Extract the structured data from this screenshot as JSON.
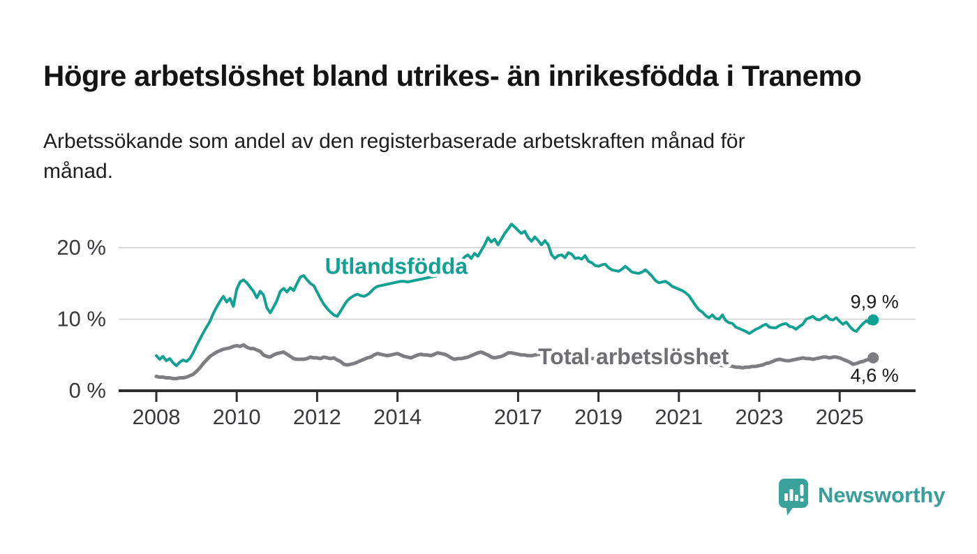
{
  "header": {
    "title": "Högre arbetslöshet bland utrikes- än inrikesfödda i Tranemo",
    "subtitle": "Arbetssökande som andel av den registerbaserade arbetskraften månad för månad."
  },
  "footer": {
    "brand": "Newsworthy"
  },
  "colors": {
    "foreign_line": "#11a192",
    "total_line": "#7d7d82",
    "total_label": "#6e6e73",
    "grid": "#d9d9d9",
    "axis": "#2e2e32",
    "tick_label": "#3a3a3e",
    "value_label": "#1a1a1a",
    "brand_teal": "#3aa19b"
  },
  "chart_data": {
    "type": "line",
    "title": "Högre arbetslöshet bland utrikes- än inrikesfödda i Tranemo",
    "subtitle": "Arbetssökande som andel av den registerbaserade arbetskraften månad för månad.",
    "xlabel": "",
    "ylabel": "",
    "ylim": [
      0,
      24
    ],
    "x_range_years": [
      2008,
      2025.92
    ],
    "grid": "horizontal",
    "legend_position": "inline-labels",
    "y_ticks": [
      {
        "label": "0 %",
        "value": 0
      },
      {
        "label": "10 %",
        "value": 10
      },
      {
        "label": "20 %",
        "value": 20
      }
    ],
    "x_ticks": [
      {
        "label": "2008",
        "year": 2008
      },
      {
        "label": "2010",
        "year": 2010
      },
      {
        "label": "2012",
        "year": 2012
      },
      {
        "label": "2014",
        "year": 2014
      },
      {
        "label": "2017",
        "year": 2017
      },
      {
        "label": "2019",
        "year": 2019
      },
      {
        "label": "2021",
        "year": 2021
      },
      {
        "label": "2023",
        "year": 2023
      },
      {
        "label": "2025",
        "year": 2025
      }
    ],
    "series": [
      {
        "id": "utlandsfodda",
        "name": "Utlandsfödda",
        "color": "#11a192",
        "line_width": 4,
        "end_value": 9.9,
        "end_label": "9,9 %",
        "end_label_side": "above",
        "name_label_anchor": {
          "year": 2013.97,
          "value": 17.4
        },
        "start_year": 2008,
        "points_per_year": 12,
        "values": [
          4.9,
          4.4,
          4.8,
          4.2,
          4.5,
          3.9,
          3.5,
          4.0,
          4.3,
          4.1,
          4.5,
          5.3,
          6.3,
          7.2,
          8.1,
          8.9,
          9.7,
          10.8,
          11.7,
          12.5,
          13.2,
          12.4,
          12.9,
          11.8,
          14.2,
          15.2,
          15.5,
          15.1,
          14.5,
          13.9,
          13.0,
          13.9,
          13.4,
          11.6,
          10.9,
          11.7,
          12.6,
          13.9,
          14.3,
          13.8,
          14.4,
          14.0,
          15.0,
          15.9,
          16.1,
          15.5,
          15.0,
          14.7,
          13.8,
          12.9,
          12.1,
          11.5,
          11.0,
          10.6,
          10.4,
          11.1,
          11.9,
          12.6,
          13.0,
          13.3,
          13.5,
          13.3,
          13.2,
          13.4,
          13.8,
          14.3,
          14.6,
          14.7,
          14.8,
          14.9,
          15.0,
          15.1,
          15.2,
          15.3,
          15.3,
          15.2,
          15.3,
          15.4,
          15.5,
          15.6,
          15.7,
          15.8,
          15.9,
          16.0,
          16.1,
          16.2,
          16.4,
          16.6,
          16.9,
          17.2,
          17.6,
          18.0,
          18.7,
          19.0,
          18.5,
          19.2,
          18.8,
          19.6,
          20.4,
          21.4,
          20.8,
          21.2,
          20.4,
          21.2,
          22.0,
          22.6,
          23.3,
          22.9,
          22.4,
          22.0,
          22.3,
          21.4,
          20.9,
          21.5,
          21.0,
          20.4,
          21.0,
          20.4,
          19.0,
          18.5,
          18.9,
          19.0,
          18.6,
          19.3,
          19.1,
          18.5,
          18.6,
          18.4,
          18.9,
          18.1,
          17.9,
          17.5,
          17.4,
          17.6,
          17.7,
          17.2,
          16.9,
          16.8,
          16.7,
          17.0,
          17.4,
          17.0,
          16.6,
          16.5,
          16.4,
          16.6,
          16.9,
          16.5,
          16.0,
          15.4,
          15.1,
          15.2,
          15.3,
          15.0,
          14.6,
          14.4,
          14.2,
          14.0,
          13.7,
          13.3,
          12.6,
          11.9,
          11.3,
          11.0,
          10.5,
          10.2,
          10.6,
          10.1,
          10.0,
          10.6,
          9.8,
          9.5,
          9.4,
          8.9,
          8.7,
          8.5,
          8.3,
          8.0,
          8.3,
          8.6,
          8.8,
          9.1,
          9.3,
          8.9,
          8.8,
          8.8,
          9.1,
          9.3,
          9.4,
          9.0,
          8.9,
          8.6,
          9.0,
          9.3,
          10.0,
          10.2,
          10.4,
          10.0,
          9.9,
          10.2,
          10.5,
          10.0,
          9.9,
          10.2,
          9.7,
          9.3,
          9.6,
          9.0,
          8.5,
          8.3,
          8.9,
          9.4,
          9.8,
          9.4,
          9.9
        ]
      },
      {
        "id": "total",
        "name": "Total arbetslöshet",
        "color": "#7d7d82",
        "line_width": 5,
        "end_value": 4.6,
        "end_label": "4,6 %",
        "end_label_side": "below",
        "name_label_anchor": {
          "year": 2019.87,
          "value": 4.78
        },
        "start_year": 2008,
        "points_per_year": 12,
        "values": [
          2.0,
          1.9,
          1.9,
          1.8,
          1.8,
          1.7,
          1.7,
          1.8,
          1.8,
          1.9,
          2.1,
          2.3,
          2.7,
          3.2,
          3.8,
          4.3,
          4.8,
          5.1,
          5.4,
          5.6,
          5.8,
          5.9,
          6.0,
          6.2,
          6.3,
          6.2,
          6.4,
          6.1,
          5.9,
          5.9,
          5.7,
          5.5,
          5.0,
          4.8,
          4.7,
          5.0,
          5.2,
          5.3,
          5.4,
          5.1,
          4.8,
          4.5,
          4.4,
          4.4,
          4.4,
          4.5,
          4.7,
          4.6,
          4.6,
          4.5,
          4.7,
          4.6,
          4.5,
          4.6,
          4.3,
          4.1,
          3.7,
          3.6,
          3.7,
          3.8,
          4.0,
          4.2,
          4.4,
          4.6,
          4.7,
          5.0,
          5.2,
          5.1,
          5.0,
          4.9,
          5.0,
          5.1,
          5.2,
          5.0,
          4.8,
          4.7,
          4.6,
          4.8,
          5.0,
          5.1,
          5.0,
          5.0,
          4.9,
          5.1,
          5.3,
          5.2,
          5.1,
          4.9,
          4.6,
          4.4,
          4.5,
          4.5,
          4.6,
          4.7,
          4.9,
          5.1,
          5.3,
          5.4,
          5.2,
          5.0,
          4.7,
          4.6,
          4.7,
          4.8,
          5.0,
          5.3,
          5.3,
          5.2,
          5.1,
          5.0,
          5.0,
          4.9,
          4.9,
          5.0,
          5.1,
          5.1,
          5.0,
          5.0,
          4.9,
          4.9,
          4.9,
          4.8,
          4.8,
          4.8,
          4.7,
          4.7,
          4.7,
          4.6,
          4.6,
          4.6,
          4.5,
          4.5,
          4.5,
          4.4,
          4.4,
          4.4,
          4.3,
          4.3,
          4.3,
          4.3,
          4.3,
          4.2,
          4.2,
          4.2,
          4.2,
          4.2,
          4.2,
          4.1,
          4.1,
          4.1,
          4.0,
          4.0,
          4.0,
          3.9,
          3.9,
          3.9,
          3.9,
          3.8,
          3.8,
          3.8,
          3.7,
          3.7,
          3.7,
          3.6,
          3.6,
          3.6,
          3.6,
          3.6,
          3.6,
          3.5,
          3.6,
          3.5,
          3.4,
          3.3,
          3.3,
          3.2,
          3.3,
          3.3,
          3.4,
          3.4,
          3.5,
          3.6,
          3.8,
          3.9,
          4.1,
          4.3,
          4.4,
          4.3,
          4.2,
          4.2,
          4.3,
          4.4,
          4.5,
          4.6,
          4.5,
          4.5,
          4.4,
          4.5,
          4.6,
          4.7,
          4.7,
          4.6,
          4.7,
          4.7,
          4.6,
          4.4,
          4.2,
          4.0,
          3.7,
          3.8,
          4.0,
          4.1,
          4.3,
          4.4,
          4.6
        ]
      }
    ]
  }
}
